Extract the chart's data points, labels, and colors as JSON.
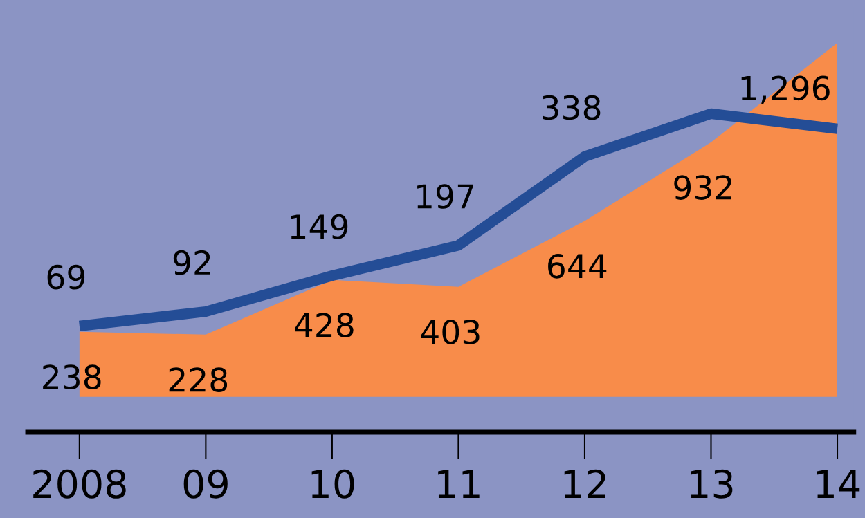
{
  "chart_data": {
    "type": "area",
    "categories": [
      "2008",
      "09",
      "10",
      "11",
      "12",
      "13",
      "14"
    ],
    "series": [
      {
        "color": "#f88c4a",
        "values": [
          238,
          228,
          428,
          403,
          644,
          932,
          1296
        ],
        "value_labels": [
          "238",
          "228",
          "428",
          "403",
          "644",
          "932",
          "1,296"
        ]
      },
      {
        "type": "line",
        "axis": "y2",
        "color": "#244d96",
        "values": [
          69,
          92,
          149,
          197,
          338,
          406,
          382
        ],
        "value_labels": [
          "69",
          "92",
          "149",
          "197",
          "338",
          null,
          null
        ]
      }
    ],
    "tick_labels": "x",
    "grid": false,
    "legend": false,
    "marker": "none",
    "line_style": "solid"
  }
}
